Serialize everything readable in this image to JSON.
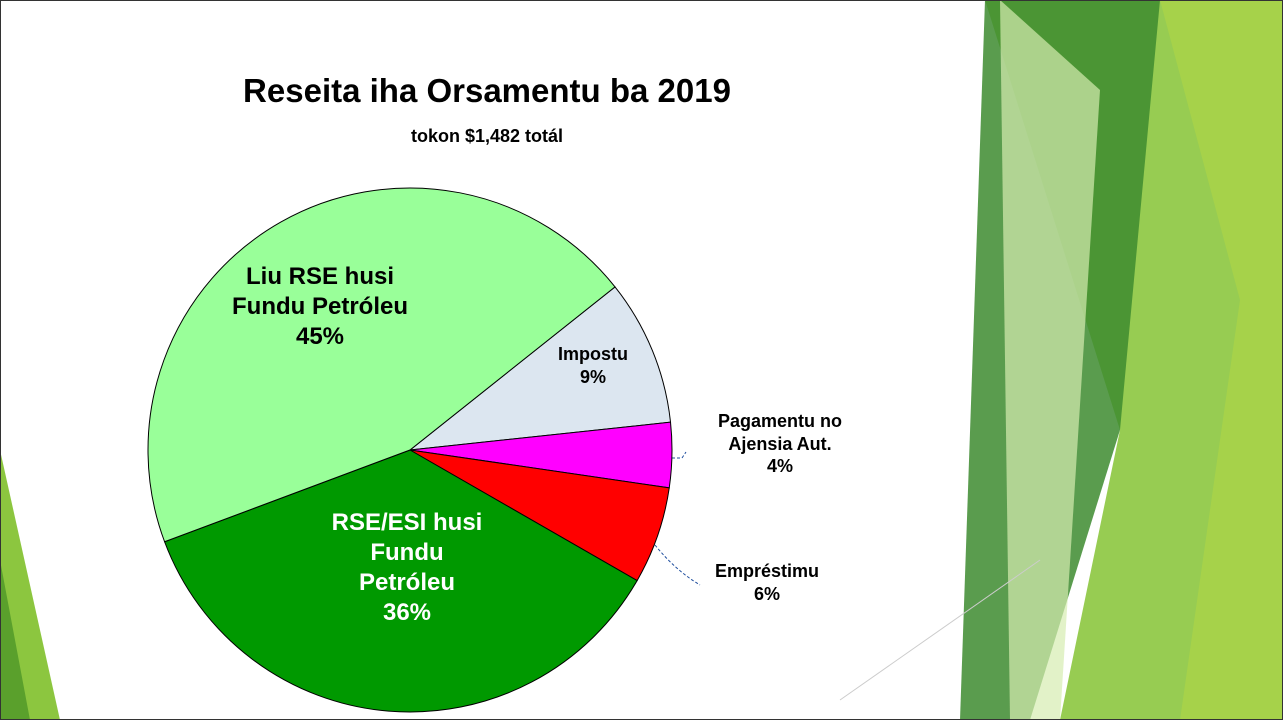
{
  "chart_data": {
    "type": "pie",
    "title": "Reseita iha Orsamentu ba 2019",
    "subtitle": "tokon $1,482 totál",
    "categories": [
      "Impostu",
      "Pagamentu no\nAjensia Aut.",
      "Empréstimu",
      "RSE/ESI husi\nFundu\nPetróleu",
      "Liu RSE husi\nFundu Petróleu"
    ],
    "values": [
      9,
      4,
      6,
      36,
      45
    ],
    "value_labels": [
      "9%",
      "4%",
      "6%",
      "36%",
      "45%"
    ],
    "colors": [
      "#dce6f0",
      "#ff00ff",
      "#ff0000",
      "#009900",
      "#99ff99"
    ]
  }
}
